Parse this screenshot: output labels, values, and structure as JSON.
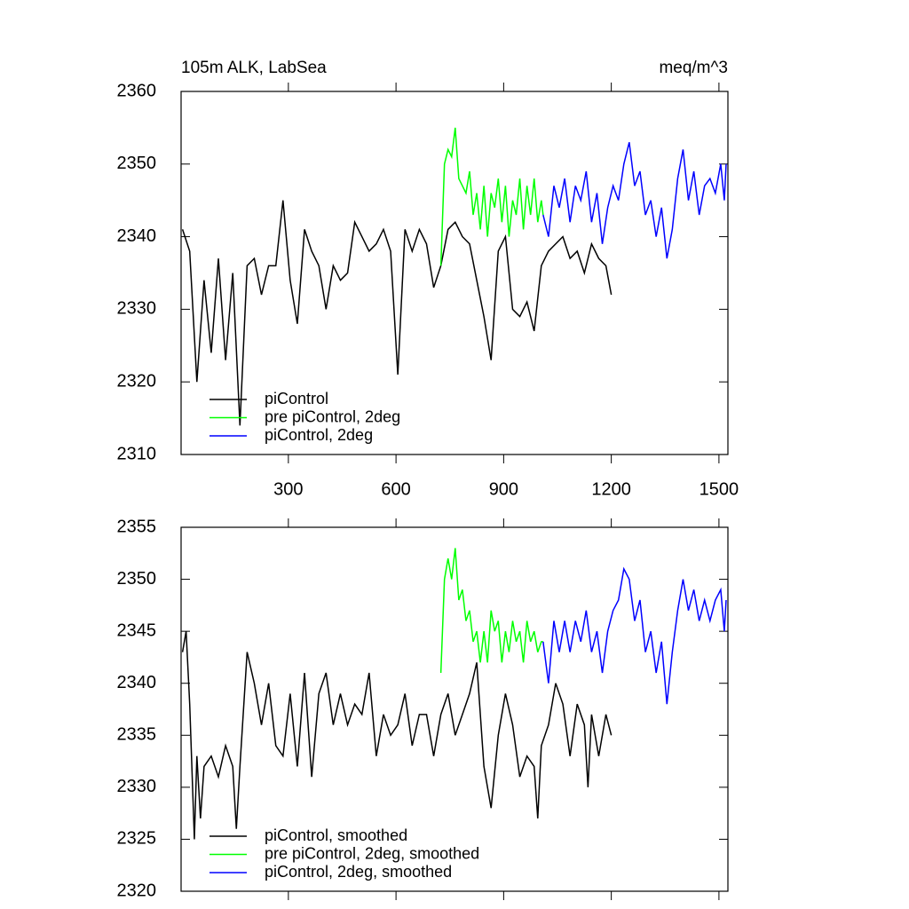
{
  "chart_data": [
    {
      "type": "line",
      "title": "105m ALK, LabSea",
      "units": "meq/m^3",
      "xlim": [
        1,
        1525
      ],
      "xticks": [
        300,
        600,
        900,
        1200,
        1500
      ],
      "xtick_labels": true,
      "ylim": [
        2310,
        2360
      ],
      "yticks": [
        2310,
        2320,
        2330,
        2340,
        2350,
        2360
      ],
      "legend": "lower left",
      "series": [
        {
          "name": "piControl",
          "color": "#000000",
          "x": [
            5,
            25,
            45,
            65,
            85,
            105,
            125,
            145,
            165,
            185,
            205,
            225,
            245,
            265,
            285,
            305,
            325,
            345,
            365,
            385,
            405,
            425,
            445,
            465,
            485,
            505,
            525,
            545,
            565,
            585,
            605,
            625,
            645,
            665,
            685,
            705,
            725,
            745,
            765,
            785,
            805,
            825,
            845,
            865,
            885,
            905,
            925,
            945,
            965,
            985,
            1005,
            1025,
            1045,
            1065,
            1085,
            1105,
            1125,
            1145,
            1165,
            1185,
            1200
          ],
          "values": [
            2341,
            2338,
            2320,
            2334,
            2324,
            2337,
            2323,
            2335,
            2314,
            2336,
            2337,
            2332,
            2336,
            2336,
            2345,
            2334,
            2328,
            2341,
            2338,
            2336,
            2330,
            2336,
            2334,
            2335,
            2342,
            2340,
            2338,
            2339,
            2341,
            2338,
            2321,
            2341,
            2338,
            2341,
            2339,
            2333,
            2336,
            2341,
            2342,
            2340,
            2339,
            2334,
            2329,
            2323,
            2338,
            2340,
            2330,
            2329,
            2331,
            2327,
            2336,
            2338,
            2339,
            2340,
            2337,
            2338,
            2335,
            2339,
            2337,
            2336,
            2332
          ]
        },
        {
          "name": "pre piControl, 2deg",
          "color": "#00ff00",
          "x": [
            725,
            735,
            745,
            755,
            765,
            775,
            785,
            795,
            805,
            815,
            825,
            835,
            845,
            855,
            865,
            875,
            885,
            895,
            905,
            915,
            925,
            935,
            945,
            955,
            965,
            975,
            985,
            995,
            1005,
            1010
          ],
          "values": [
            2336,
            2350,
            2352,
            2351,
            2355,
            2348,
            2347,
            2346,
            2349,
            2343,
            2346,
            2341,
            2347,
            2340,
            2346,
            2344,
            2348,
            2342,
            2347,
            2340,
            2345,
            2343,
            2348,
            2341,
            2347,
            2343,
            2348,
            2342,
            2345,
            2343
          ]
        },
        {
          "name": "piControl, 2deg",
          "color": "#0000ff",
          "x": [
            1010,
            1025,
            1040,
            1055,
            1070,
            1085,
            1100,
            1115,
            1130,
            1145,
            1160,
            1175,
            1190,
            1205,
            1220,
            1235,
            1250,
            1265,
            1280,
            1295,
            1310,
            1325,
            1340,
            1355,
            1370,
            1385,
            1400,
            1415,
            1430,
            1445,
            1460,
            1475,
            1490,
            1505,
            1515,
            1520
          ],
          "values": [
            2343,
            2340,
            2347,
            2344,
            2348,
            2342,
            2347,
            2345,
            2349,
            2342,
            2346,
            2339,
            2344,
            2347,
            2345,
            2350,
            2353,
            2347,
            2349,
            2343,
            2345,
            2340,
            2344,
            2337,
            2341,
            2348,
            2352,
            2345,
            2349,
            2343,
            2347,
            2348,
            2346,
            2350,
            2345,
            2350
          ]
        }
      ]
    },
    {
      "type": "line",
      "xlim": [
        1,
        1525
      ],
      "xticks": [
        300,
        600,
        900,
        1200,
        1500
      ],
      "xtick_labels": false,
      "ylim": [
        2320,
        2355
      ],
      "yticks": [
        2320,
        2325,
        2330,
        2335,
        2340,
        2345,
        2350,
        2355
      ],
      "legend": "lower left",
      "series": [
        {
          "name": "piControl, smoothed",
          "color": "#000000",
          "x": [
            5,
            15,
            25,
            38,
            45,
            55,
            65,
            85,
            105,
            125,
            145,
            155,
            165,
            185,
            205,
            225,
            245,
            265,
            285,
            305,
            325,
            345,
            365,
            385,
            405,
            425,
            445,
            465,
            485,
            505,
            525,
            545,
            565,
            585,
            605,
            625,
            645,
            665,
            685,
            705,
            725,
            745,
            765,
            785,
            805,
            825,
            845,
            865,
            885,
            905,
            925,
            945,
            965,
            985,
            995,
            1005,
            1025,
            1045,
            1065,
            1085,
            1105,
            1125,
            1135,
            1145,
            1165,
            1185,
            1200
          ],
          "values": [
            2343,
            2345,
            2338,
            2325,
            2333,
            2327,
            2332,
            2333,
            2331,
            2334,
            2332,
            2326,
            2332,
            2343,
            2340,
            2336,
            2340,
            2334,
            2333,
            2339,
            2332,
            2341,
            2331,
            2339,
            2341,
            2336,
            2339,
            2336,
            2338,
            2337,
            2341,
            2333,
            2337,
            2335,
            2336,
            2339,
            2334,
            2337,
            2337,
            2333,
            2337,
            2339,
            2335,
            2337,
            2339,
            2342,
            2332,
            2328,
            2335,
            2339,
            2336,
            2331,
            2333,
            2332,
            2327,
            2334,
            2336,
            2340,
            2338,
            2333,
            2338,
            2336,
            2330,
            2337,
            2333,
            2337,
            2335
          ]
        },
        {
          "name": "pre piControl, 2deg, smoothed",
          "color": "#00ff00",
          "x": [
            725,
            735,
            745,
            755,
            765,
            775,
            785,
            795,
            805,
            815,
            825,
            835,
            845,
            855,
            865,
            875,
            885,
            895,
            905,
            915,
            925,
            935,
            945,
            955,
            965,
            975,
            985,
            995,
            1005,
            1010
          ],
          "values": [
            2341,
            2350,
            2352,
            2350,
            2353,
            2348,
            2349,
            2346,
            2347,
            2344,
            2345,
            2342,
            2345,
            2342,
            2347,
            2345,
            2346,
            2342,
            2345,
            2343,
            2346,
            2344,
            2345,
            2342,
            2346,
            2344,
            2345,
            2343,
            2344,
            2344
          ]
        },
        {
          "name": "piControl, 2deg, smoothed",
          "color": "#0000ff",
          "x": [
            1010,
            1025,
            1040,
            1055,
            1070,
            1085,
            1100,
            1115,
            1130,
            1145,
            1160,
            1175,
            1190,
            1205,
            1220,
            1235,
            1250,
            1265,
            1280,
            1295,
            1310,
            1325,
            1340,
            1355,
            1370,
            1385,
            1400,
            1415,
            1430,
            1445,
            1460,
            1475,
            1490,
            1505,
            1515,
            1520
          ],
          "values": [
            2344,
            2340,
            2346,
            2343,
            2346,
            2343,
            2346,
            2344,
            2347,
            2343,
            2345,
            2341,
            2345,
            2347,
            2348,
            2351,
            2350,
            2346,
            2348,
            2343,
            2345,
            2341,
            2344,
            2338,
            2343,
            2347,
            2350,
            2347,
            2349,
            2346,
            2348,
            2346,
            2348,
            2349,
            2345,
            2348
          ]
        }
      ]
    }
  ]
}
